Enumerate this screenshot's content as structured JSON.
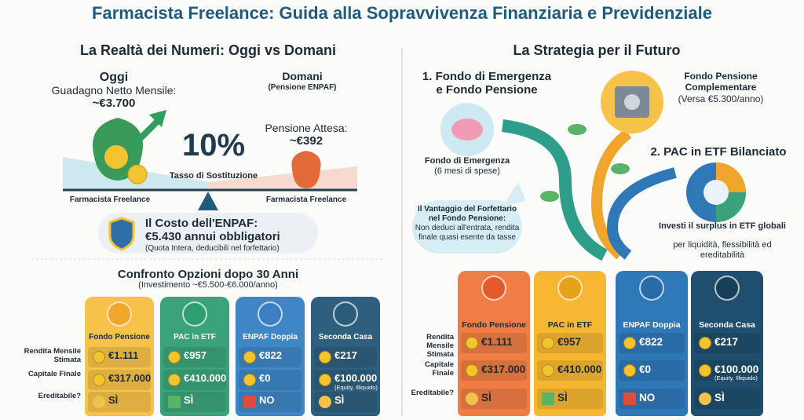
{
  "title": "Farmacista Freelance: Guida alla Sopravvivenza Finanziaria e Previdenziale",
  "left": {
    "heading": "La Realtà dei Numeri: Oggi vs Domani",
    "today": {
      "label": "Oggi",
      "line1": "Guadagno Netto Mensile:",
      "amount": "~€3.700",
      "caption": "Farmacista Freelance"
    },
    "tomorrow": {
      "label": "Domani",
      "sub": "(Pensione ENPAF)",
      "line1": "Pensione Attesa:",
      "amount": "~€392",
      "caption": "Farmacista Freelance"
    },
    "rate": {
      "value": "10%",
      "label": "Tasso di Sostituzione"
    },
    "enpaf": {
      "title": "Il Costo dell'ENPAF:",
      "amount": "€5.430 annui obbligatori",
      "note": "(Quota Intera, deducibili nel forfettario)"
    },
    "comparison": {
      "title": "Confronto Opzioni dopo 30 Anni",
      "subtitle": "(Investimento ~€5.500-€6.000/anno)",
      "row_labels": [
        "Rendita Mensile Stimata",
        "Capitale Finale",
        "Ereditabile?"
      ],
      "options": [
        {
          "name": "Fondo Pensione",
          "rendita": "€1.111",
          "capitale": "€317.000",
          "ereditabile": "SÌ"
        },
        {
          "name": "PAC in ETF",
          "rendita": "€957",
          "capitale": "€410.000",
          "ereditabile": "SÌ"
        },
        {
          "name": "ENPAF Doppia",
          "rendita": "€822",
          "capitale": "€0",
          "ereditabile": "NO"
        },
        {
          "name": "Seconda Casa",
          "rendita": "€217",
          "capitale": "€100.000",
          "capitale_note": "(Equity, Illiquido)",
          "ereditabile": "SÌ"
        }
      ]
    }
  },
  "right": {
    "heading": "La Strategia per il Futuro",
    "step1": "1. Fondo di Emergenza e Fondo Pensione",
    "emergency": {
      "title": "Fondo di Emergenza",
      "note": "(6 mesi di spese)"
    },
    "pension": {
      "title": "Fondo Pensione Complementare",
      "note": "(Versa €5.300/anno)"
    },
    "step2": "2. PAC in ETF Bilanciato",
    "pac": {
      "bold": "Investi il surplus in ETF globali",
      "text": "per liquidità, flessibilità ed ereditabilità"
    },
    "bubble": {
      "title": "Il Vantaggio del Forfettario nel Fondo Pensione:",
      "text": "Non deduci all'entrata, rendita finale quasi esente da tasse"
    },
    "comparison": {
      "row_labels": [
        "Rendita Mensile Stimata",
        "Capitale Finale",
        "Ereditabile?"
      ],
      "options": [
        {
          "name": "Fondo Pensione",
          "rendita": "€1.111",
          "capitale": "€317.000",
          "ereditabile": "SÌ"
        },
        {
          "name": "PAC in ETF",
          "rendita": "€957",
          "capitale": "€410.000",
          "ereditabile": "SÌ"
        },
        {
          "name": "ENPAF Doppia",
          "rendita": "€822",
          "capitale": "€0",
          "ereditabile": "NO"
        },
        {
          "name": "Seconda Casa",
          "rendita": "€217",
          "capitale": "€100.000",
          "capitale_note": "(Equity, Illiquido)",
          "ereditabile": "SÌ"
        }
      ]
    }
  }
}
